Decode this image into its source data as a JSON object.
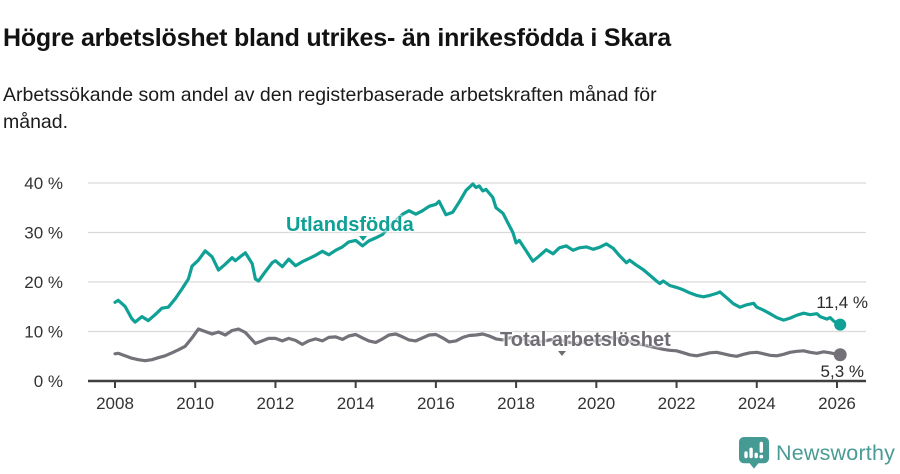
{
  "header": {
    "title": "Högre arbetslöshet bland utrikes- än inrikesfödda i Skara",
    "subtitle": "Arbetssökande som andel av den registerbaserade arbetskraften månad för\nmånad."
  },
  "chart_data": {
    "type": "line",
    "title": "Högre arbetslöshet bland utrikes- än inrikesfödda i Skara",
    "subtitle": "Arbetssökande som andel av den registerbaserade arbetskraften månad för månad.",
    "grid_on": true,
    "grid_color": "#d9d9d9",
    "axis_color": "#3f3f3f",
    "tick_label_color": "#333333",
    "x_axis": {
      "range": [
        2007.4,
        2026.7
      ],
      "ticks": [
        {
          "value": 2008,
          "label": "2008"
        },
        {
          "value": 2010,
          "label": "2010"
        },
        {
          "value": 2012,
          "label": "2012"
        },
        {
          "value": 2014,
          "label": "2014"
        },
        {
          "value": 2016,
          "label": "2016"
        },
        {
          "value": 2018,
          "label": "2018"
        },
        {
          "value": 2020,
          "label": "2020"
        },
        {
          "value": 2022,
          "label": "2022"
        },
        {
          "value": 2024,
          "label": "2024"
        },
        {
          "value": 2026,
          "label": "2026"
        }
      ]
    },
    "y_axis": {
      "range": [
        0,
        40
      ],
      "ticks": [
        {
          "value": 0,
          "label": "0 %"
        },
        {
          "value": 10,
          "label": "10 %"
        },
        {
          "value": 20,
          "label": "20 %"
        },
        {
          "value": 30,
          "label": "30 %"
        },
        {
          "value": 40,
          "label": "40 %"
        }
      ]
    },
    "series": [
      {
        "name": "Utlandsfödda",
        "color": "#0fa096",
        "end_value_label": "11,4 %",
        "end_value": 11.4,
        "points": [
          [
            2008.0,
            15.9
          ],
          [
            2008.08,
            16.3
          ],
          [
            2008.25,
            15.1
          ],
          [
            2008.42,
            12.6
          ],
          [
            2008.5,
            11.9
          ],
          [
            2008.67,
            13.0
          ],
          [
            2008.83,
            12.2
          ],
          [
            2009.0,
            13.4
          ],
          [
            2009.17,
            14.7
          ],
          [
            2009.33,
            14.9
          ],
          [
            2009.5,
            16.6
          ],
          [
            2009.67,
            18.6
          ],
          [
            2009.83,
            20.6
          ],
          [
            2009.92,
            23.2
          ],
          [
            2010.08,
            24.4
          ],
          [
            2010.25,
            26.3
          ],
          [
            2010.42,
            25.1
          ],
          [
            2010.58,
            22.4
          ],
          [
            2010.75,
            23.6
          ],
          [
            2010.92,
            24.9
          ],
          [
            2011.0,
            24.3
          ],
          [
            2011.17,
            25.4
          ],
          [
            2011.25,
            25.9
          ],
          [
            2011.42,
            23.7
          ],
          [
            2011.5,
            20.6
          ],
          [
            2011.58,
            20.2
          ],
          [
            2011.75,
            22.1
          ],
          [
            2011.92,
            23.9
          ],
          [
            2012.0,
            24.3
          ],
          [
            2012.17,
            23.1
          ],
          [
            2012.33,
            24.6
          ],
          [
            2012.5,
            23.3
          ],
          [
            2012.67,
            24.1
          ],
          [
            2012.83,
            24.7
          ],
          [
            2013.0,
            25.4
          ],
          [
            2013.17,
            26.2
          ],
          [
            2013.33,
            25.5
          ],
          [
            2013.5,
            26.4
          ],
          [
            2013.67,
            27.1
          ],
          [
            2013.83,
            28.1
          ],
          [
            2014.0,
            28.4
          ],
          [
            2014.17,
            27.3
          ],
          [
            2014.33,
            28.3
          ],
          [
            2014.5,
            28.9
          ],
          [
            2014.67,
            29.6
          ],
          [
            2014.83,
            31.1
          ],
          [
            2015.0,
            32.4
          ],
          [
            2015.17,
            33.7
          ],
          [
            2015.33,
            34.4
          ],
          [
            2015.5,
            33.7
          ],
          [
            2015.67,
            34.4
          ],
          [
            2015.83,
            35.3
          ],
          [
            2016.0,
            35.7
          ],
          [
            2016.08,
            36.3
          ],
          [
            2016.25,
            33.6
          ],
          [
            2016.42,
            34.1
          ],
          [
            2016.58,
            36.1
          ],
          [
            2016.75,
            38.5
          ],
          [
            2016.92,
            39.8
          ],
          [
            2017.0,
            39.1
          ],
          [
            2017.08,
            39.4
          ],
          [
            2017.17,
            38.4
          ],
          [
            2017.25,
            38.7
          ],
          [
            2017.42,
            37.1
          ],
          [
            2017.5,
            35.0
          ],
          [
            2017.67,
            33.9
          ],
          [
            2017.83,
            31.4
          ],
          [
            2017.92,
            30.0
          ],
          [
            2018.0,
            27.9
          ],
          [
            2018.08,
            28.4
          ],
          [
            2018.25,
            26.3
          ],
          [
            2018.42,
            24.2
          ],
          [
            2018.58,
            25.3
          ],
          [
            2018.75,
            26.5
          ],
          [
            2018.92,
            25.7
          ],
          [
            2019.08,
            26.9
          ],
          [
            2019.25,
            27.3
          ],
          [
            2019.42,
            26.4
          ],
          [
            2019.58,
            26.9
          ],
          [
            2019.75,
            27.1
          ],
          [
            2019.92,
            26.6
          ],
          [
            2020.08,
            27.0
          ],
          [
            2020.25,
            27.7
          ],
          [
            2020.42,
            26.8
          ],
          [
            2020.58,
            25.3
          ],
          [
            2020.75,
            23.9
          ],
          [
            2020.83,
            24.4
          ],
          [
            2021.0,
            23.4
          ],
          [
            2021.17,
            22.5
          ],
          [
            2021.33,
            21.4
          ],
          [
            2021.5,
            20.2
          ],
          [
            2021.58,
            19.7
          ],
          [
            2021.67,
            20.2
          ],
          [
            2021.83,
            19.3
          ],
          [
            2022.0,
            18.9
          ],
          [
            2022.17,
            18.4
          ],
          [
            2022.33,
            17.8
          ],
          [
            2022.5,
            17.3
          ],
          [
            2022.67,
            17.0
          ],
          [
            2022.83,
            17.3
          ],
          [
            2023.0,
            17.7
          ],
          [
            2023.08,
            18.0
          ],
          [
            2023.25,
            16.8
          ],
          [
            2023.42,
            15.6
          ],
          [
            2023.58,
            14.9
          ],
          [
            2023.75,
            15.4
          ],
          [
            2023.92,
            15.7
          ],
          [
            2024.0,
            14.9
          ],
          [
            2024.17,
            14.3
          ],
          [
            2024.33,
            13.6
          ],
          [
            2024.5,
            12.8
          ],
          [
            2024.67,
            12.3
          ],
          [
            2024.83,
            12.7
          ],
          [
            2025.0,
            13.3
          ],
          [
            2025.17,
            13.7
          ],
          [
            2025.33,
            13.4
          ],
          [
            2025.5,
            13.6
          ],
          [
            2025.58,
            13.0
          ],
          [
            2025.75,
            12.5
          ],
          [
            2025.83,
            12.8
          ],
          [
            2025.92,
            12.1
          ],
          [
            2026.0,
            11.7
          ],
          [
            2026.08,
            11.4
          ]
        ]
      },
      {
        "name": "Total arbetslöshet",
        "color": "#747179",
        "end_value_label": "5,3 %",
        "end_value": 5.3,
        "points": [
          [
            2008.0,
            5.5
          ],
          [
            2008.08,
            5.6
          ],
          [
            2008.25,
            5.1
          ],
          [
            2008.42,
            4.6
          ],
          [
            2008.58,
            4.3
          ],
          [
            2008.75,
            4.1
          ],
          [
            2008.92,
            4.3
          ],
          [
            2009.08,
            4.7
          ],
          [
            2009.25,
            5.1
          ],
          [
            2009.42,
            5.7
          ],
          [
            2009.58,
            6.3
          ],
          [
            2009.75,
            7.0
          ],
          [
            2009.92,
            8.7
          ],
          [
            2010.08,
            10.5
          ],
          [
            2010.25,
            10.0
          ],
          [
            2010.42,
            9.5
          ],
          [
            2010.58,
            9.9
          ],
          [
            2010.75,
            9.3
          ],
          [
            2010.92,
            10.2
          ],
          [
            2011.08,
            10.5
          ],
          [
            2011.25,
            9.8
          ],
          [
            2011.42,
            8.3
          ],
          [
            2011.5,
            7.6
          ],
          [
            2011.67,
            8.1
          ],
          [
            2011.83,
            8.6
          ],
          [
            2012.0,
            8.6
          ],
          [
            2012.17,
            8.1
          ],
          [
            2012.33,
            8.6
          ],
          [
            2012.5,
            8.2
          ],
          [
            2012.67,
            7.4
          ],
          [
            2012.83,
            8.1
          ],
          [
            2013.0,
            8.5
          ],
          [
            2013.17,
            8.1
          ],
          [
            2013.33,
            8.8
          ],
          [
            2013.5,
            8.9
          ],
          [
            2013.67,
            8.4
          ],
          [
            2013.83,
            9.1
          ],
          [
            2014.0,
            9.4
          ],
          [
            2014.17,
            8.7
          ],
          [
            2014.33,
            8.1
          ],
          [
            2014.5,
            7.8
          ],
          [
            2014.67,
            8.5
          ],
          [
            2014.83,
            9.3
          ],
          [
            2015.0,
            9.5
          ],
          [
            2015.17,
            8.9
          ],
          [
            2015.33,
            8.3
          ],
          [
            2015.5,
            8.1
          ],
          [
            2015.67,
            8.7
          ],
          [
            2015.83,
            9.3
          ],
          [
            2016.0,
            9.4
          ],
          [
            2016.17,
            8.7
          ],
          [
            2016.33,
            7.9
          ],
          [
            2016.5,
            8.1
          ],
          [
            2016.67,
            8.8
          ],
          [
            2016.83,
            9.2
          ],
          [
            2017.0,
            9.3
          ],
          [
            2017.17,
            9.5
          ],
          [
            2017.33,
            9.1
          ],
          [
            2017.5,
            8.5
          ],
          [
            2017.67,
            8.3
          ],
          [
            2017.83,
            8.7
          ],
          [
            2018.0,
            8.9
          ],
          [
            2018.17,
            8.5
          ],
          [
            2018.33,
            8.0
          ],
          [
            2018.5,
            7.7
          ],
          [
            2018.67,
            8.0
          ],
          [
            2018.83,
            8.3
          ],
          [
            2019.0,
            8.4
          ],
          [
            2019.17,
            8.1
          ],
          [
            2019.33,
            7.8
          ],
          [
            2019.5,
            7.6
          ],
          [
            2019.67,
            7.8
          ],
          [
            2019.83,
            8.1
          ],
          [
            2020.0,
            8.1
          ],
          [
            2020.17,
            8.4
          ],
          [
            2020.33,
            8.8
          ],
          [
            2020.5,
            8.6
          ],
          [
            2020.67,
            8.3
          ],
          [
            2020.83,
            8.0
          ],
          [
            2021.0,
            7.6
          ],
          [
            2021.17,
            7.3
          ],
          [
            2021.33,
            7.0
          ],
          [
            2021.5,
            6.7
          ],
          [
            2021.67,
            6.4
          ],
          [
            2021.83,
            6.2
          ],
          [
            2022.0,
            6.1
          ],
          [
            2022.17,
            5.7
          ],
          [
            2022.33,
            5.3
          ],
          [
            2022.5,
            5.1
          ],
          [
            2022.67,
            5.4
          ],
          [
            2022.83,
            5.7
          ],
          [
            2023.0,
            5.8
          ],
          [
            2023.17,
            5.5
          ],
          [
            2023.33,
            5.2
          ],
          [
            2023.5,
            5.0
          ],
          [
            2023.67,
            5.4
          ],
          [
            2023.83,
            5.7
          ],
          [
            2024.0,
            5.8
          ],
          [
            2024.17,
            5.5
          ],
          [
            2024.33,
            5.2
          ],
          [
            2024.5,
            5.1
          ],
          [
            2024.67,
            5.4
          ],
          [
            2024.83,
            5.8
          ],
          [
            2025.0,
            6.0
          ],
          [
            2025.17,
            6.1
          ],
          [
            2025.33,
            5.8
          ],
          [
            2025.5,
            5.6
          ],
          [
            2025.67,
            5.9
          ],
          [
            2025.83,
            5.7
          ],
          [
            2026.0,
            5.4
          ],
          [
            2026.08,
            5.3
          ]
        ]
      }
    ]
  },
  "footer": {
    "brand": "Newsworthy",
    "brand_color": "#4a9b95"
  }
}
